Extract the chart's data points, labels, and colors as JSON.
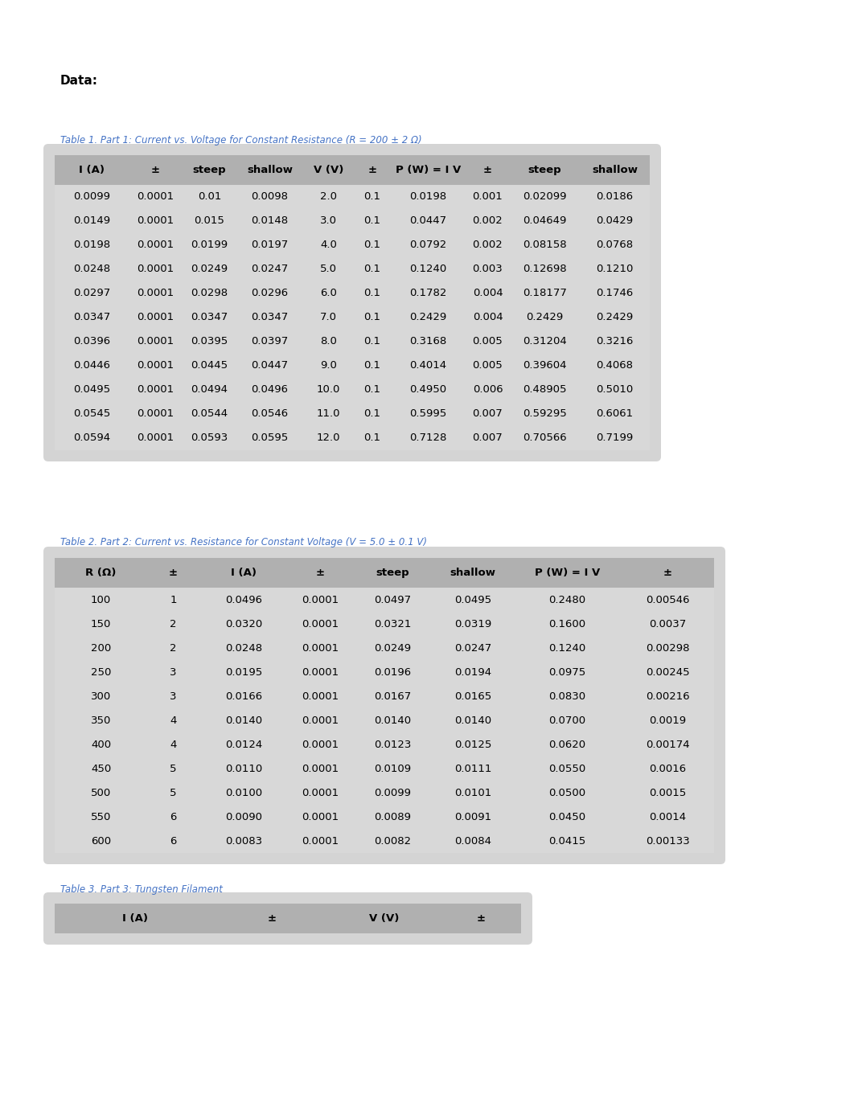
{
  "page_bg": "#ffffff",
  "data_label": "Data:",
  "table1_caption": "Table 1. Part 1: Current vs. Voltage for Constant Resistance (R = 200 ± 2 Ω)",
  "table1_headers": [
    "I (A)",
    "±",
    "steep",
    "shallow",
    "V (V)",
    "±",
    "P (W) = I V",
    "±",
    "steep",
    "shallow"
  ],
  "table1_rows": [
    [
      "0.0099",
      "0.0001",
      "0.01",
      "0.0098",
      "2.0",
      "0.1",
      "0.0198",
      "0.001",
      "0.02099",
      "0.0186"
    ],
    [
      "0.0149",
      "0.0001",
      "0.015",
      "0.0148",
      "3.0",
      "0.1",
      "0.0447",
      "0.002",
      "0.04649",
      "0.0429"
    ],
    [
      "0.0198",
      "0.0001",
      "0.0199",
      "0.0197",
      "4.0",
      "0.1",
      "0.0792",
      "0.002",
      "0.08158",
      "0.0768"
    ],
    [
      "0.0248",
      "0.0001",
      "0.0249",
      "0.0247",
      "5.0",
      "0.1",
      "0.1240",
      "0.003",
      "0.12698",
      "0.1210"
    ],
    [
      "0.0297",
      "0.0001",
      "0.0298",
      "0.0296",
      "6.0",
      "0.1",
      "0.1782",
      "0.004",
      "0.18177",
      "0.1746"
    ],
    [
      "0.0347",
      "0.0001",
      "0.0347",
      "0.0347",
      "7.0",
      "0.1",
      "0.2429",
      "0.004",
      "0.2429",
      "0.2429"
    ],
    [
      "0.0396",
      "0.0001",
      "0.0395",
      "0.0397",
      "8.0",
      "0.1",
      "0.3168",
      "0.005",
      "0.31204",
      "0.3216"
    ],
    [
      "0.0446",
      "0.0001",
      "0.0445",
      "0.0447",
      "9.0",
      "0.1",
      "0.4014",
      "0.005",
      "0.39604",
      "0.4068"
    ],
    [
      "0.0495",
      "0.0001",
      "0.0494",
      "0.0496",
      "10.0",
      "0.1",
      "0.4950",
      "0.006",
      "0.48905",
      "0.5010"
    ],
    [
      "0.0545",
      "0.0001",
      "0.0544",
      "0.0546",
      "11.0",
      "0.1",
      "0.5995",
      "0.007",
      "0.59295",
      "0.6061"
    ],
    [
      "0.0594",
      "0.0001",
      "0.0593",
      "0.0595",
      "12.0",
      "0.1",
      "0.7128",
      "0.007",
      "0.70566",
      "0.7199"
    ]
  ],
  "table2_caption": "Table 2. Part 2: Current vs. Resistance for Constant Voltage (V = 5.0 ± 0.1 V)",
  "table2_headers": [
    "R (Ω)",
    "±",
    "I (A)",
    "±",
    "steep",
    "shallow",
    "P (W) = I V",
    "±"
  ],
  "table2_rows": [
    [
      "100",
      "1",
      "0.0496",
      "0.0001",
      "0.0497",
      "0.0495",
      "0.2480",
      "0.00546"
    ],
    [
      "150",
      "2",
      "0.0320",
      "0.0001",
      "0.0321",
      "0.0319",
      "0.1600",
      "0.0037"
    ],
    [
      "200",
      "2",
      "0.0248",
      "0.0001",
      "0.0249",
      "0.0247",
      "0.1240",
      "0.00298"
    ],
    [
      "250",
      "3",
      "0.0195",
      "0.0001",
      "0.0196",
      "0.0194",
      "0.0975",
      "0.00245"
    ],
    [
      "300",
      "3",
      "0.0166",
      "0.0001",
      "0.0167",
      "0.0165",
      "0.0830",
      "0.00216"
    ],
    [
      "350",
      "4",
      "0.0140",
      "0.0001",
      "0.0140",
      "0.0140",
      "0.0700",
      "0.0019"
    ],
    [
      "400",
      "4",
      "0.0124",
      "0.0001",
      "0.0123",
      "0.0125",
      "0.0620",
      "0.00174"
    ],
    [
      "450",
      "5",
      "0.0110",
      "0.0001",
      "0.0109",
      "0.0111",
      "0.0550",
      "0.0016"
    ],
    [
      "500",
      "5",
      "0.0100",
      "0.0001",
      "0.0099",
      "0.0101",
      "0.0500",
      "0.0015"
    ],
    [
      "550",
      "6",
      "0.0090",
      "0.0001",
      "0.0089",
      "0.0091",
      "0.0450",
      "0.0014"
    ],
    [
      "600",
      "6",
      "0.0083",
      "0.0001",
      "0.0082",
      "0.0084",
      "0.0415",
      "0.00133"
    ]
  ],
  "table3_caption": "Table 3. Part 3: Tungsten Filament",
  "table3_headers": [
    "I (A)",
    "±",
    "V (V)",
    "±"
  ],
  "caption_color": "#4472c4",
  "header_bg": "#b0b0b0",
  "header_text": "#000000",
  "row_bg": "#d8d8d8",
  "row_text": "#000000",
  "font_size_caption": 8.5,
  "font_size_table": 9.5,
  "font_size_data_label": 11,
  "font_size_table3_header": 9.5
}
